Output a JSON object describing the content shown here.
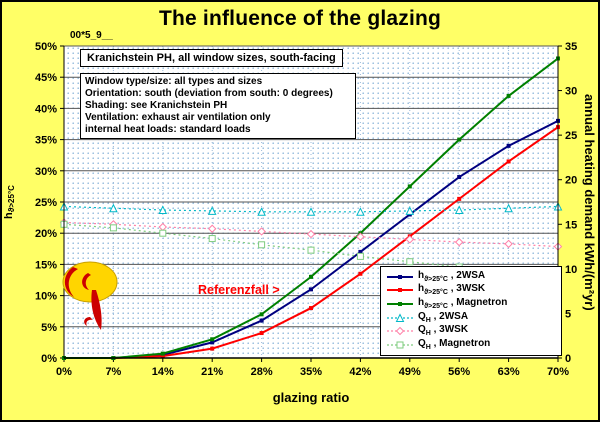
{
  "annotations": {
    "code_label": "00*5_9__",
    "referenzfall": "Referenzfall >"
  },
  "info_box1": {
    "text": "Kranichstein PH, all window sizes, south-facing"
  },
  "info_box2": {
    "lines": [
      "Window type/size: all types and sizes",
      "Orientation: south (deviation from south: 0 degrees)",
      "Shading: see Kranichstein PH",
      "Ventilation: exhaust air ventilation only",
      "internal heat loads: standard loads"
    ]
  },
  "chart_data": {
    "type": "line",
    "title": "The influence of the glazing",
    "xlabel": "glazing ratio",
    "x_ticks": [
      "0%",
      "7%",
      "14%",
      "21%",
      "28%",
      "35%",
      "42%",
      "49%",
      "56%",
      "63%",
      "70%"
    ],
    "x_values": [
      0,
      7,
      14,
      21,
      28,
      35,
      42,
      49,
      56,
      63,
      70
    ],
    "grid": true,
    "legend_position": "bottom-right-inside",
    "left_axis": {
      "label_base": "h",
      "label_sub": "ϑ>25°C",
      "ticks": [
        "0%",
        "5%",
        "10%",
        "15%",
        "20%",
        "25%",
        "30%",
        "35%",
        "40%",
        "45%",
        "50%"
      ],
      "min": 0,
      "max": 50
    },
    "right_axis": {
      "label": "annual heating demand kWh/(m²yr)",
      "ticks": [
        "0",
        "5",
        "10",
        "15",
        "20",
        "25",
        "30",
        "35"
      ],
      "min": 0,
      "max": 35
    },
    "series": [
      {
        "label_base": "h",
        "label_sub": "ϑ>25°C",
        "label_rest": " , 2WSA",
        "axis": "left",
        "color": "#000080",
        "style": "solid",
        "marker": "square",
        "marker_size": 4,
        "values": [
          0,
          0,
          0.5,
          2.5,
          6,
          11,
          17,
          23,
          29,
          34,
          38
        ]
      },
      {
        "label_base": "h",
        "label_sub": "ϑ>25°C",
        "label_rest": " , 3WSK",
        "axis": "left",
        "color": "#FF0000",
        "style": "solid",
        "marker": "square",
        "marker_size": 4,
        "values": [
          0,
          0,
          0.3,
          1.5,
          4,
          8,
          13.5,
          19.5,
          25.5,
          31.5,
          37
        ]
      },
      {
        "label_base": "h",
        "label_sub": "ϑ>25°C",
        "label_rest": " , Magnetron",
        "axis": "left",
        "color": "#008000",
        "style": "solid",
        "marker": "square",
        "marker_size": 4,
        "values": [
          0,
          0,
          0.7,
          3,
          7,
          13,
          20,
          27.5,
          35,
          42,
          48
        ]
      },
      {
        "label_base": "Q",
        "label_sub": "H",
        "label_rest": " , 2WSA",
        "axis": "right",
        "color": "#00B8C8",
        "style": "dotted",
        "marker": "triangle-open",
        "marker_size": 7,
        "values": [
          17,
          16.8,
          16.6,
          16.5,
          16.4,
          16.4,
          16.4,
          16.5,
          16.6,
          16.8,
          17
        ]
      },
      {
        "label_base": "Q",
        "label_sub": "H",
        "label_rest": " , 3WSK",
        "axis": "right",
        "color": "#FF80A8",
        "style": "dotted",
        "marker": "diamond-open",
        "marker_size": 7,
        "values": [
          15.2,
          15,
          14.7,
          14.5,
          14.2,
          13.9,
          13.6,
          13.3,
          13,
          12.8,
          12.5
        ]
      },
      {
        "label_base": "Q",
        "label_sub": "H",
        "label_rest": " , Magnetron",
        "axis": "right",
        "color": "#7FCC7F",
        "style": "dotted",
        "marker": "square-open",
        "marker_size": 6,
        "values": [
          15,
          14.6,
          14,
          13.4,
          12.7,
          12.1,
          11.4,
          10.8,
          10.2,
          9.7,
          9.3
        ]
      }
    ]
  }
}
